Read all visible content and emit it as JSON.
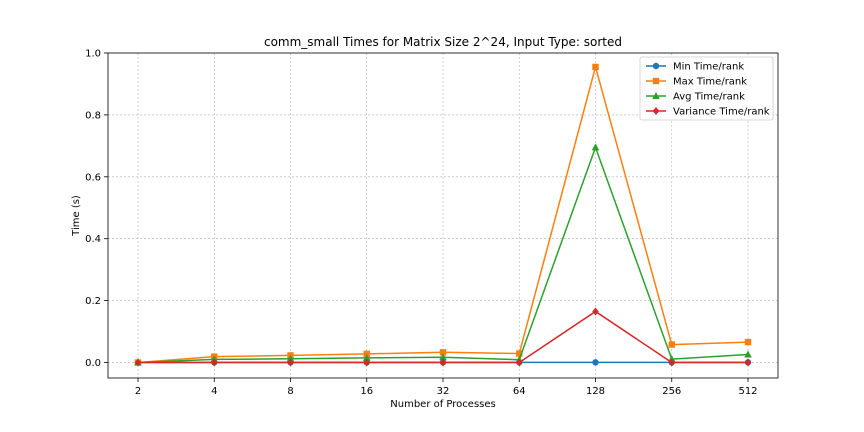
{
  "chart_data": {
    "type": "line",
    "title": "comm_small Times for Matrix Size 2^24, Input Type: sorted",
    "xlabel": "Number of Processes",
    "ylabel": "Time (s)",
    "categories": [
      "2",
      "4",
      "8",
      "16",
      "32",
      "64",
      "128",
      "256",
      "512"
    ],
    "ylim": [
      -0.05,
      1.0
    ],
    "yticks": [
      "0.0",
      "0.2",
      "0.4",
      "0.6",
      "0.8",
      "1.0"
    ],
    "grid": true,
    "legend_position": "top-right",
    "series": [
      {
        "name": "Min Time/rank",
        "color": "#1f77b4",
        "marker": "circle",
        "values": [
          0.0,
          0.0005,
          0.0005,
          0.0005,
          0.0005,
          0.0005,
          0.0005,
          0.0005,
          0.0005
        ]
      },
      {
        "name": "Max Time/rank",
        "color": "#ff7f0e",
        "marker": "square",
        "values": [
          0.0,
          0.019,
          0.023,
          0.028,
          0.033,
          0.029,
          0.955,
          0.058,
          0.066
        ]
      },
      {
        "name": "Avg Time/rank",
        "color": "#2ca02c",
        "marker": "triangle",
        "values": [
          0.0,
          0.01,
          0.012,
          0.015,
          0.017,
          0.009,
          0.695,
          0.011,
          0.026
        ]
      },
      {
        "name": "Variance Time/rank",
        "color": "#d62728",
        "marker": "diamond",
        "values": [
          0.0,
          0.0,
          0.0,
          0.0,
          0.0,
          0.0,
          0.165,
          0.0,
          0.0
        ]
      }
    ]
  }
}
